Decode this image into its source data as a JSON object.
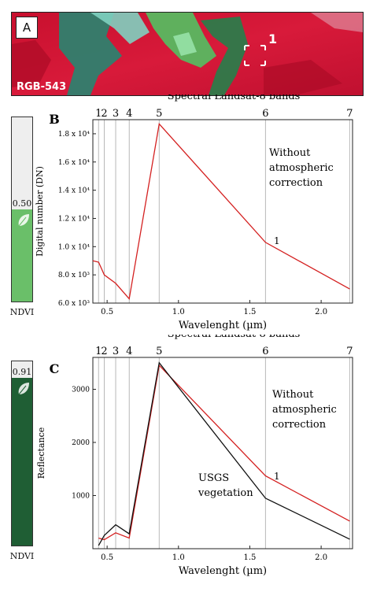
{
  "panel_a": {
    "label": "A",
    "caption": "RGB-543",
    "marker": "1"
  },
  "panel_b": {
    "label": "B",
    "ndvi_value": "0.50",
    "ndvi_fraction": 0.5,
    "ndvi_caption": "NDVI",
    "ndvi_color": "#6abf69",
    "annotation": [
      "Without",
      "atmospheric",
      "correction"
    ],
    "point_label": "1"
  },
  "panel_c": {
    "label": "C",
    "ndvi_value": "0.91",
    "ndvi_fraction": 0.91,
    "ndvi_caption": "NDVI",
    "ndvi_color": "#1f5e34",
    "annotation": [
      "Without",
      "atmospheric",
      "correction"
    ],
    "usgs_annotation": [
      "USGS",
      "vegetation"
    ],
    "point_label": "1"
  },
  "chart_data": [
    {
      "type": "line",
      "title": "Spectral Landsat-8 bands",
      "xlabel": "Wavelenght (µm)",
      "ylabel": "Digital number (DN)",
      "xlim": [
        0.4,
        2.22
      ],
      "ylim": [
        6000,
        19000
      ],
      "xticks": [
        0.5,
        1.0,
        1.5,
        2.0
      ],
      "xtick_labels": [
        "0.5",
        "1.0",
        "1.5",
        "2.0"
      ],
      "yticks": [
        6000,
        8000,
        10000,
        12000,
        14000,
        16000,
        18000
      ],
      "ytick_labels": [
        "6.0 x 10³",
        "8.0 x 10³",
        "1.0 x 10⁴",
        "1.2 x 10⁴",
        "1.4 x 10⁴",
        "1.6 x 10⁴",
        "1.8 x 10⁴"
      ],
      "bands": [
        {
          "name": "1",
          "x": 0.44
        },
        {
          "name": "2",
          "x": 0.48
        },
        {
          "name": "3",
          "x": 0.56
        },
        {
          "name": "4",
          "x": 0.655
        },
        {
          "name": "5",
          "x": 0.865
        },
        {
          "name": "6",
          "x": 1.61
        },
        {
          "name": "7",
          "x": 2.2
        }
      ],
      "series": [
        {
          "color": "#d42020",
          "x": [
            0.4,
            0.44,
            0.48,
            0.56,
            0.655,
            0.865,
            1.61,
            2.2
          ],
          "y": [
            9000,
            8900,
            8000,
            7400,
            6300,
            18700,
            10300,
            7000
          ]
        }
      ]
    },
    {
      "type": "line",
      "title": "Spectral Landsat-8 bands",
      "xlabel": "Wavelenght (µm)",
      "ylabel": "Reflectance",
      "xlim": [
        0.4,
        2.22
      ],
      "ylim": [
        0,
        3600
      ],
      "xticks": [
        0.5,
        1.0,
        1.5,
        2.0
      ],
      "xtick_labels": [
        "0.5",
        "1.0",
        "1.5",
        "2.0"
      ],
      "yticks": [
        1000,
        2000,
        3000
      ],
      "ytick_labels": [
        "1000",
        "2000",
        "3000"
      ],
      "bands": [
        {
          "name": "1",
          "x": 0.44
        },
        {
          "name": "2",
          "x": 0.48
        },
        {
          "name": "3",
          "x": 0.56
        },
        {
          "name": "4",
          "x": 0.655
        },
        {
          "name": "5",
          "x": 0.865
        },
        {
          "name": "6",
          "x": 1.61
        },
        {
          "name": "7",
          "x": 2.2
        }
      ],
      "series": [
        {
          "color": "#d42020",
          "x": [
            0.44,
            0.48,
            0.56,
            0.655,
            0.865,
            1.61,
            2.2
          ],
          "y": [
            200,
            170,
            300,
            200,
            3450,
            1370,
            520
          ]
        },
        {
          "color": "#111111",
          "x": [
            0.44,
            0.48,
            0.56,
            0.655,
            0.865,
            1.61,
            2.2
          ],
          "y": [
            60,
            250,
            450,
            280,
            3500,
            950,
            180
          ]
        }
      ]
    }
  ]
}
